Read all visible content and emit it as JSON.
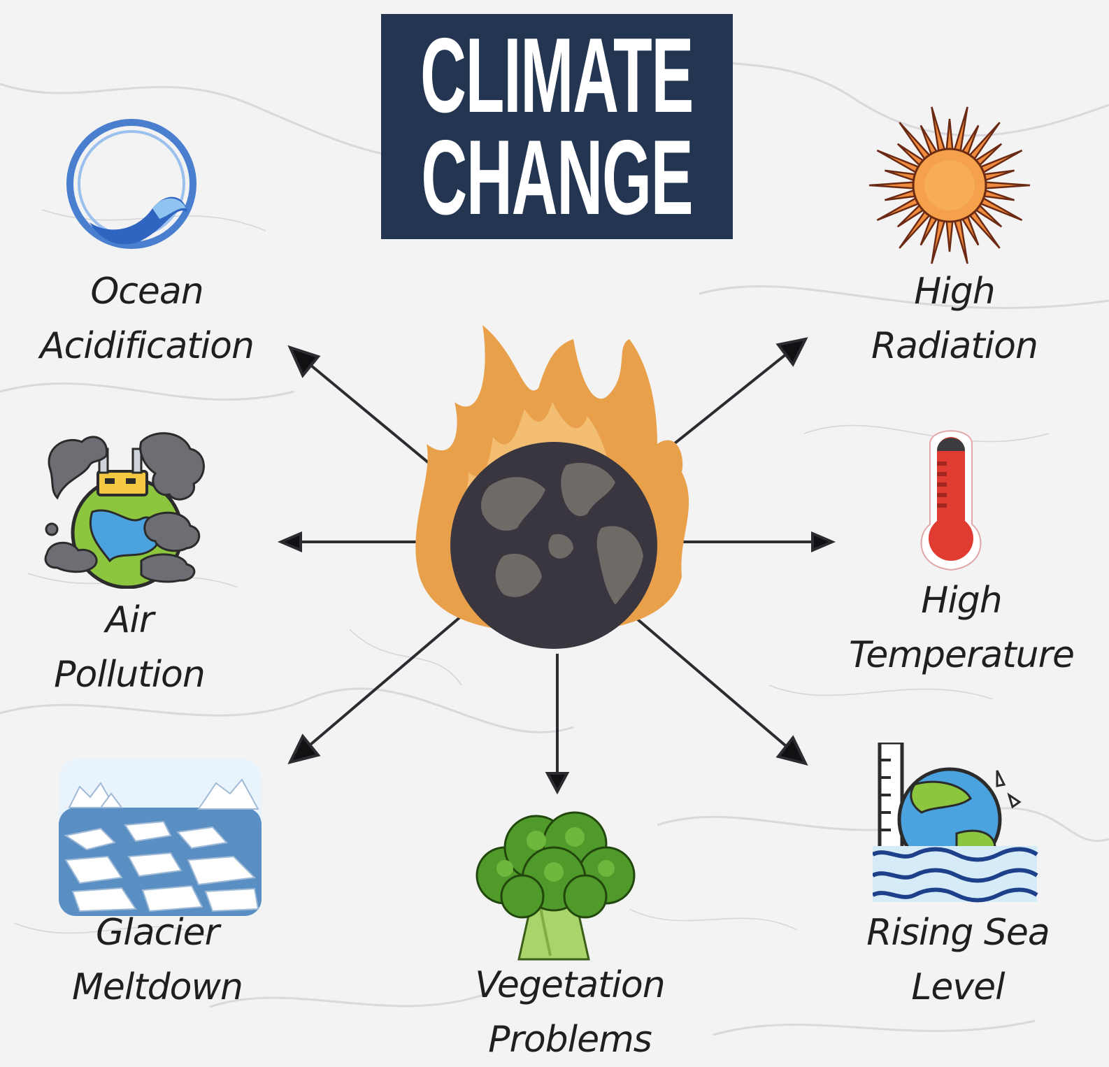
{
  "title": {
    "line1": "CLIMATE",
    "line2": "CHANGE"
  },
  "effects": {
    "ocean": {
      "line1": "Ocean",
      "line2": "Acidification",
      "icon": "ocean-wave-icon"
    },
    "radiation": {
      "line1": "High",
      "line2": "Radiation",
      "icon": "sun-icon"
    },
    "air": {
      "line1": "Air",
      "line2": "Pollution",
      "icon": "polluted-earth-icon"
    },
    "temperature": {
      "line1": "High",
      "line2": "Temperature",
      "icon": "thermometer-icon"
    },
    "glacier": {
      "line1": "Glacier",
      "line2": "Meltdown",
      "icon": "melting-ice-icon"
    },
    "vegetation": {
      "line1": "Vegetation",
      "line2": "Problems",
      "icon": "broccoli-icon"
    },
    "sea": {
      "line1": "Rising Sea",
      "line2": "Level",
      "icon": "rising-sea-icon"
    }
  },
  "center": {
    "icon": "burning-earth-icon"
  },
  "colors": {
    "title_bg": "#243552",
    "arrow": "#2b2b30",
    "flame": "#e8a04b",
    "earth": "#3a3640",
    "land": "#6f6a66"
  }
}
